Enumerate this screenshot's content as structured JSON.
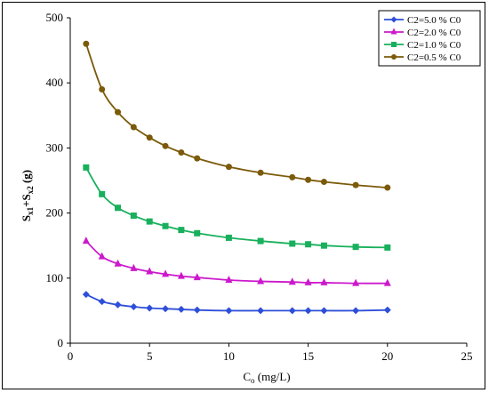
{
  "chart_data": {
    "type": "line",
    "title": "",
    "xlabel": "C",
    "xlabel_sub": "o",
    "xlabel_unit": " (mg/L)",
    "ylabel": "S",
    "ylabel_sub1": "x1",
    "ylabel_mid": "+S",
    "ylabel_sub2": "x2",
    "ylabel_unit": " (g)",
    "xlim": [
      0,
      25
    ],
    "ylim": [
      0,
      500
    ],
    "xticks": [
      0,
      5,
      10,
      15,
      20,
      25
    ],
    "yticks": [
      0,
      100,
      200,
      300,
      400,
      500
    ],
    "grid": false,
    "legend_position": "top-right",
    "x": [
      1,
      2,
      3,
      4,
      5,
      6,
      7,
      8,
      10,
      12,
      14,
      15,
      16,
      18,
      20
    ],
    "series": [
      {
        "name": "C2=5.0 % C0",
        "color": "#2E4FD8",
        "marker": "diamond",
        "values": [
          75,
          64,
          59,
          56,
          54,
          53,
          52,
          51,
          50,
          50,
          50,
          50,
          50,
          50,
          51
        ]
      },
      {
        "name": "C2=2.0 % C0",
        "color": "#CC19CC",
        "marker": "triangle",
        "values": [
          157,
          133,
          122,
          115,
          110,
          106,
          103,
          101,
          97,
          95,
          94,
          93,
          93,
          92,
          92
        ]
      },
      {
        "name": "C2=1.0 % C0",
        "color": "#18B05C",
        "marker": "square",
        "values": [
          270,
          229,
          208,
          196,
          187,
          180,
          174,
          169,
          162,
          157,
          153,
          152,
          150,
          148,
          147
        ]
      },
      {
        "name": "C2=0.5 % C0",
        "color": "#7B5A0A",
        "marker": "circle",
        "values": [
          460,
          390,
          355,
          332,
          316,
          303,
          293,
          284,
          271,
          262,
          255,
          251,
          248,
          243,
          239
        ]
      }
    ]
  }
}
